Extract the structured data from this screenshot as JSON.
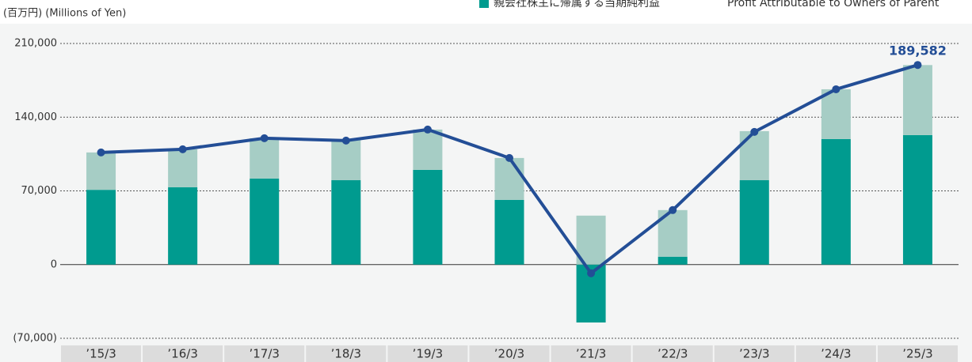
{
  "chart_data": {
    "type": "bar-line",
    "y_label": "(百万円) (Millions of Yen)",
    "categories": [
      "’15/3",
      "’16/3",
      "’17/3",
      "’18/3",
      "’19/3",
      "’20/3",
      "’21/3",
      "’22/3",
      "’23/3",
      "’24/3",
      "’25/3"
    ],
    "series": [
      {
        "name": "親会社株主に帰属する当期純利益",
        "name_en": "Profit Attributable to Owners of Parent",
        "type": "bar",
        "color": "#009b8f",
        "values": [
          71000,
          73500,
          81750,
          80250,
          90000,
          61500,
          -55000,
          7500,
          80250,
          119250,
          123000
        ]
      },
      {
        "type": "bar",
        "color": "#a6cdc5",
        "values": [
          35500,
          36000,
          38250,
          38000,
          38250,
          39750,
          46500,
          44250,
          46500,
          47250,
          66500
        ]
      },
      {
        "type": "line",
        "color": "#234e96",
        "values": [
          106500,
          109500,
          120000,
          117750,
          128250,
          101250,
          -8250,
          51750,
          126000,
          166500,
          189582
        ],
        "value_labels": [
          null,
          null,
          null,
          null,
          null,
          null,
          null,
          null,
          null,
          null,
          "189,582"
        ]
      }
    ],
    "ylim": [
      -70000,
      210000
    ],
    "yticks": [
      {
        "value": -70000,
        "label": "(70,000)"
      },
      0,
      {
        "value": 70000,
        "label": "70,000"
      },
      {
        "value": 140000,
        "label": "140,000"
      },
      {
        "value": 210000,
        "label": "210,000"
      }
    ],
    "grid": true
  }
}
